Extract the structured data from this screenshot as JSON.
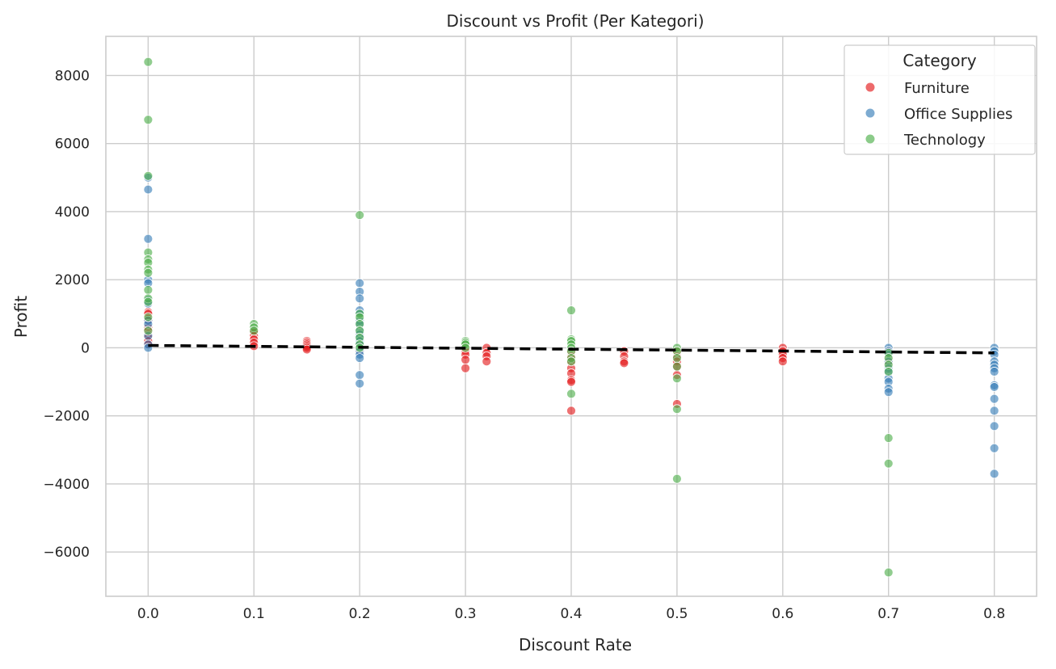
{
  "chart_data": {
    "type": "scatter",
    "title": "Discount vs Profit (Per Kategori)",
    "xlabel": "Discount Rate",
    "ylabel": "Profit",
    "xlim": [
      -0.04,
      0.84
    ],
    "ylim": [
      -7300,
      9150
    ],
    "x_ticks": [
      0.0,
      0.1,
      0.2,
      0.3,
      0.4,
      0.5,
      0.6,
      0.7,
      0.8
    ],
    "x_tick_labels": [
      "0.0",
      "0.1",
      "0.2",
      "0.3",
      "0.4",
      "0.5",
      "0.6",
      "0.7",
      "0.8"
    ],
    "y_ticks": [
      -6000,
      -4000,
      -2000,
      0,
      2000,
      4000,
      6000,
      8000
    ],
    "y_tick_labels": [
      "−6000",
      "−4000",
      "−2000",
      "0",
      "2000",
      "4000",
      "6000",
      "8000"
    ],
    "grid": true,
    "legend": {
      "title": "Category",
      "position": "top-right",
      "entries": [
        "Furniture",
        "Office Supplies",
        "Technology"
      ]
    },
    "colors": {
      "Furniture": "#e41a1c",
      "Office Supplies": "#377eb8",
      "Technology": "#4daf4a",
      "trend": "#000000",
      "grid": "#cccccc",
      "frame": "#cccccc"
    },
    "trendline": {
      "style": "dashed",
      "x": [
        0.0,
        0.8
      ],
      "y": [
        70,
        -150
      ]
    },
    "series": [
      {
        "name": "Furniture",
        "points": [
          [
            0,
            1050
          ],
          [
            0,
            1000
          ],
          [
            0,
            850
          ],
          [
            0,
            800
          ],
          [
            0,
            600
          ],
          [
            0,
            500
          ],
          [
            0,
            400
          ],
          [
            0,
            300
          ],
          [
            0,
            200
          ],
          [
            0,
            100
          ],
          [
            0.1,
            500
          ],
          [
            0.1,
            450
          ],
          [
            0.1,
            350
          ],
          [
            0.1,
            250
          ],
          [
            0.1,
            150
          ],
          [
            0.1,
            50
          ],
          [
            0.15,
            200
          ],
          [
            0.15,
            150
          ],
          [
            0.15,
            100
          ],
          [
            0.15,
            50
          ],
          [
            0.15,
            0
          ],
          [
            0.15,
            -50
          ],
          [
            0.2,
            80
          ],
          [
            0.2,
            -80
          ],
          [
            0.3,
            50
          ],
          [
            0.3,
            0
          ],
          [
            0.3,
            -100
          ],
          [
            0.3,
            -200
          ],
          [
            0.3,
            -350
          ],
          [
            0.3,
            -600
          ],
          [
            0.32,
            0
          ],
          [
            0.32,
            -150
          ],
          [
            0.32,
            -250
          ],
          [
            0.32,
            -400
          ],
          [
            0.4,
            -100
          ],
          [
            0.4,
            -250
          ],
          [
            0.4,
            -400
          ],
          [
            0.4,
            -600
          ],
          [
            0.4,
            -750
          ],
          [
            0.4,
            -950
          ],
          [
            0.4,
            -1000
          ],
          [
            0.4,
            -1850
          ],
          [
            0.45,
            -100
          ],
          [
            0.45,
            -250
          ],
          [
            0.45,
            -400
          ],
          [
            0.45,
            -450
          ],
          [
            0.5,
            -100
          ],
          [
            0.5,
            -250
          ],
          [
            0.5,
            -400
          ],
          [
            0.5,
            -550
          ],
          [
            0.5,
            -800
          ],
          [
            0.5,
            -1650
          ],
          [
            0.6,
            0
          ],
          [
            0.6,
            -100
          ],
          [
            0.6,
            -200
          ],
          [
            0.6,
            -300
          ],
          [
            0.6,
            -400
          ],
          [
            0.7,
            -100
          ],
          [
            0.7,
            -300
          ],
          [
            0.7,
            -450
          ]
        ]
      },
      {
        "name": "Office Supplies",
        "points": [
          [
            0,
            5000
          ],
          [
            0,
            4650
          ],
          [
            0,
            3200
          ],
          [
            0,
            2000
          ],
          [
            0,
            1900
          ],
          [
            0,
            1400
          ],
          [
            0,
            1300
          ],
          [
            0,
            800
          ],
          [
            0,
            700
          ],
          [
            0,
            350
          ],
          [
            0,
            100
          ],
          [
            0,
            0
          ],
          [
            0.2,
            1900
          ],
          [
            0.2,
            1650
          ],
          [
            0.2,
            1450
          ],
          [
            0.2,
            1100
          ],
          [
            0.2,
            1000
          ],
          [
            0.2,
            800
          ],
          [
            0.2,
            700
          ],
          [
            0.2,
            500
          ],
          [
            0.2,
            400
          ],
          [
            0.2,
            300
          ],
          [
            0.2,
            200
          ],
          [
            0.2,
            100
          ],
          [
            0.2,
            0
          ],
          [
            0.2,
            -100
          ],
          [
            0.2,
            -200
          ],
          [
            0.2,
            -300
          ],
          [
            0.2,
            -800
          ],
          [
            0.2,
            -1050
          ],
          [
            0.7,
            0
          ],
          [
            0.7,
            -100
          ],
          [
            0.7,
            -200
          ],
          [
            0.7,
            -400
          ],
          [
            0.7,
            -600
          ],
          [
            0.7,
            -700
          ],
          [
            0.7,
            -900
          ],
          [
            0.7,
            -1000
          ],
          [
            0.7,
            -1200
          ],
          [
            0.7,
            -1300
          ],
          [
            0.8,
            0
          ],
          [
            0.8,
            -100
          ],
          [
            0.8,
            -200
          ],
          [
            0.8,
            -400
          ],
          [
            0.8,
            -500
          ],
          [
            0.8,
            -600
          ],
          [
            0.8,
            -700
          ],
          [
            0.8,
            -1100
          ],
          [
            0.8,
            -1150
          ],
          [
            0.8,
            -1500
          ],
          [
            0.8,
            -1850
          ],
          [
            0.8,
            -2300
          ],
          [
            0.8,
            -2950
          ],
          [
            0.8,
            -3700
          ]
        ]
      },
      {
        "name": "Technology",
        "points": [
          [
            0,
            8400
          ],
          [
            0,
            6700
          ],
          [
            0,
            5050
          ],
          [
            0,
            2800
          ],
          [
            0,
            2600
          ],
          [
            0,
            2500
          ],
          [
            0,
            2300
          ],
          [
            0,
            2200
          ],
          [
            0,
            1700
          ],
          [
            0,
            1450
          ],
          [
            0,
            1350
          ],
          [
            0,
            900
          ],
          [
            0,
            500
          ],
          [
            0.1,
            700
          ],
          [
            0.1,
            600
          ],
          [
            0.1,
            500
          ],
          [
            0.2,
            3900
          ],
          [
            0.2,
            1000
          ],
          [
            0.2,
            900
          ],
          [
            0.2,
            700
          ],
          [
            0.2,
            500
          ],
          [
            0.2,
            300
          ],
          [
            0.2,
            100
          ],
          [
            0.2,
            0
          ],
          [
            0.3,
            200
          ],
          [
            0.3,
            150
          ],
          [
            0.3,
            100
          ],
          [
            0.3,
            0
          ],
          [
            0.4,
            1100
          ],
          [
            0.4,
            250
          ],
          [
            0.4,
            200
          ],
          [
            0.4,
            100
          ],
          [
            0.4,
            0
          ],
          [
            0.4,
            -100
          ],
          [
            0.4,
            -300
          ],
          [
            0.4,
            -400
          ],
          [
            0.4,
            -1350
          ],
          [
            0.5,
            0
          ],
          [
            0.5,
            -100
          ],
          [
            0.5,
            -300
          ],
          [
            0.5,
            -550
          ],
          [
            0.5,
            -900
          ],
          [
            0.5,
            -1800
          ],
          [
            0.5,
            -3850
          ],
          [
            0.7,
            -150
          ],
          [
            0.7,
            -300
          ],
          [
            0.7,
            -500
          ],
          [
            0.7,
            -700
          ],
          [
            0.7,
            -2650
          ],
          [
            0.7,
            -3400
          ],
          [
            0.7,
            -6600
          ]
        ]
      }
    ]
  }
}
